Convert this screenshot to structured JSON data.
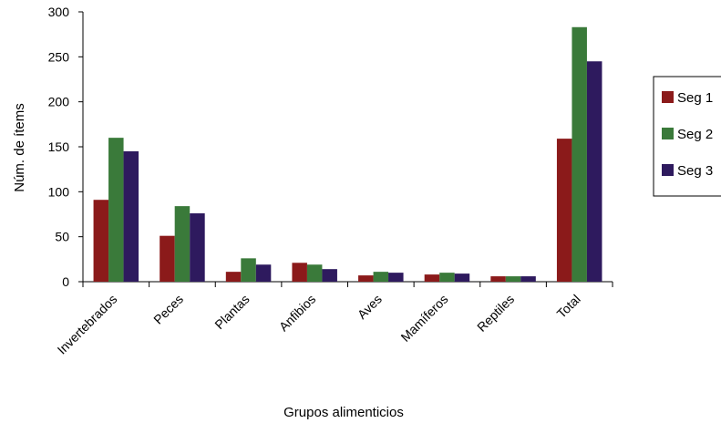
{
  "chart_data": {
    "type": "bar",
    "title": "",
    "xlabel": "Grupos alimenticios",
    "ylabel": "Núm. de ítems",
    "categories": [
      "Invertebrados",
      "Peces",
      "Plantas",
      "Anfibios",
      "Aves",
      "Mamíferos",
      "Reptiles",
      "Total"
    ],
    "ylim": [
      0,
      300
    ],
    "yticks": [
      0,
      50,
      100,
      150,
      200,
      250,
      300
    ],
    "grid": false,
    "legend_position": "right",
    "series": [
      {
        "name": "Seg 1",
        "color": "#8b1a1a",
        "values": [
          91,
          51,
          11,
          21,
          7,
          8,
          6,
          159
        ]
      },
      {
        "name": "Seg 2",
        "color": "#3a7a3a",
        "values": [
          160,
          84,
          26,
          19,
          11,
          10,
          6,
          283
        ]
      },
      {
        "name": "Seg 3",
        "color": "#2e1a5e",
        "values": [
          145,
          76,
          19,
          14,
          10,
          9,
          6,
          245
        ]
      }
    ]
  }
}
